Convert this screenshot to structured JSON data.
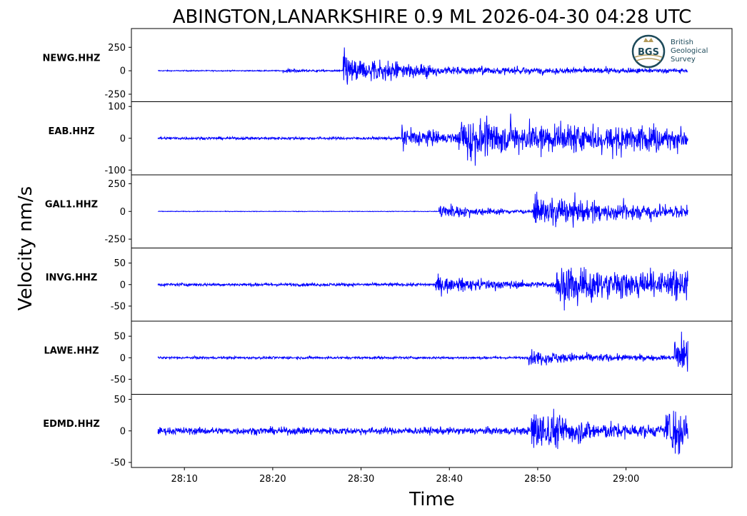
{
  "chart_data": {
    "type": "line",
    "title": "ABINGTON,LANARKSHIRE 0.9 ML   2026-04-30 04:28 UTC",
    "xlabel": "Time",
    "ylabel": "Velocity nm/s",
    "xlim": [
      "28:04",
      "29:12"
    ],
    "x_ticks": [
      "28:10",
      "28:20",
      "28:30",
      "28:40",
      "28:50",
      "29:00"
    ],
    "trace_time_range": [
      "28:07",
      "29:07"
    ],
    "line_color": "#0000ff",
    "logo": {
      "name": "bgs-logo",
      "text": "BGS",
      "lines": [
        "British",
        "Geological",
        "Survey"
      ]
    },
    "series": [
      {
        "name": "NEWG.HHZ",
        "ylim": [
          -330,
          450
        ],
        "y_ticks": [
          250,
          0,
          -250
        ],
        "y_tick_labels": [
          "250",
          "0",
          "-250"
        ],
        "noise": 4,
        "phases": [
          [
            28.3,
            18,
            3
          ],
          [
            41.9,
            170,
            4
          ],
          [
            48,
            40,
            40
          ]
        ]
      },
      {
        "name": "EAB.HHZ",
        "ylim": [
          -115,
          115
        ],
        "y_ticks": [
          100,
          0,
          -100
        ],
        "y_tick_labels": [
          "100",
          "0",
          "-100"
        ],
        "noise": 3,
        "phases": [
          [
            55.2,
            35,
            5
          ],
          [
            68,
            50,
            30
          ],
          [
            98,
            10,
            40
          ]
        ]
      },
      {
        "name": "GAL1.HHZ",
        "ylim": [
          -330,
          330
        ],
        "y_ticks": [
          250,
          0,
          -250
        ],
        "y_tick_labels": [
          "250",
          "0",
          "-250"
        ],
        "noise": 2,
        "phases": [
          [
            63.6,
            60,
            6
          ],
          [
            85,
            120,
            12
          ],
          [
            100,
            20,
            40
          ]
        ]
      },
      {
        "name": "INVG.HHZ",
        "ylim": [
          -85,
          85
        ],
        "y_ticks": [
          50,
          0,
          -50
        ],
        "y_tick_labels": [
          "50",
          "0",
          "-50"
        ],
        "noise": 2.5,
        "phases": [
          [
            62.8,
            15,
            8
          ],
          [
            90,
            35,
            20
          ],
          [
            110,
            8,
            40
          ]
        ]
      },
      {
        "name": "LAWE.HHZ",
        "ylim": [
          -85,
          85
        ],
        "y_ticks": [
          50,
          0,
          -50
        ],
        "y_tick_labels": [
          "50",
          "0",
          "-50"
        ],
        "noise": 2,
        "phases": [
          [
            84,
            12,
            10
          ],
          [
            117,
            40,
            10
          ],
          [
            130,
            8,
            30
          ]
        ]
      },
      {
        "name": "EDMD.HHZ",
        "ylim": [
          -58,
          58
        ],
        "y_ticks": [
          50,
          0,
          -50
        ],
        "y_tick_labels": [
          "50",
          "0",
          "-50"
        ],
        "noise": 4,
        "phases": [
          [
            84.5,
            30,
            6
          ],
          [
            115,
            25,
            15
          ],
          [
            130,
            10,
            40
          ]
        ]
      }
    ]
  }
}
